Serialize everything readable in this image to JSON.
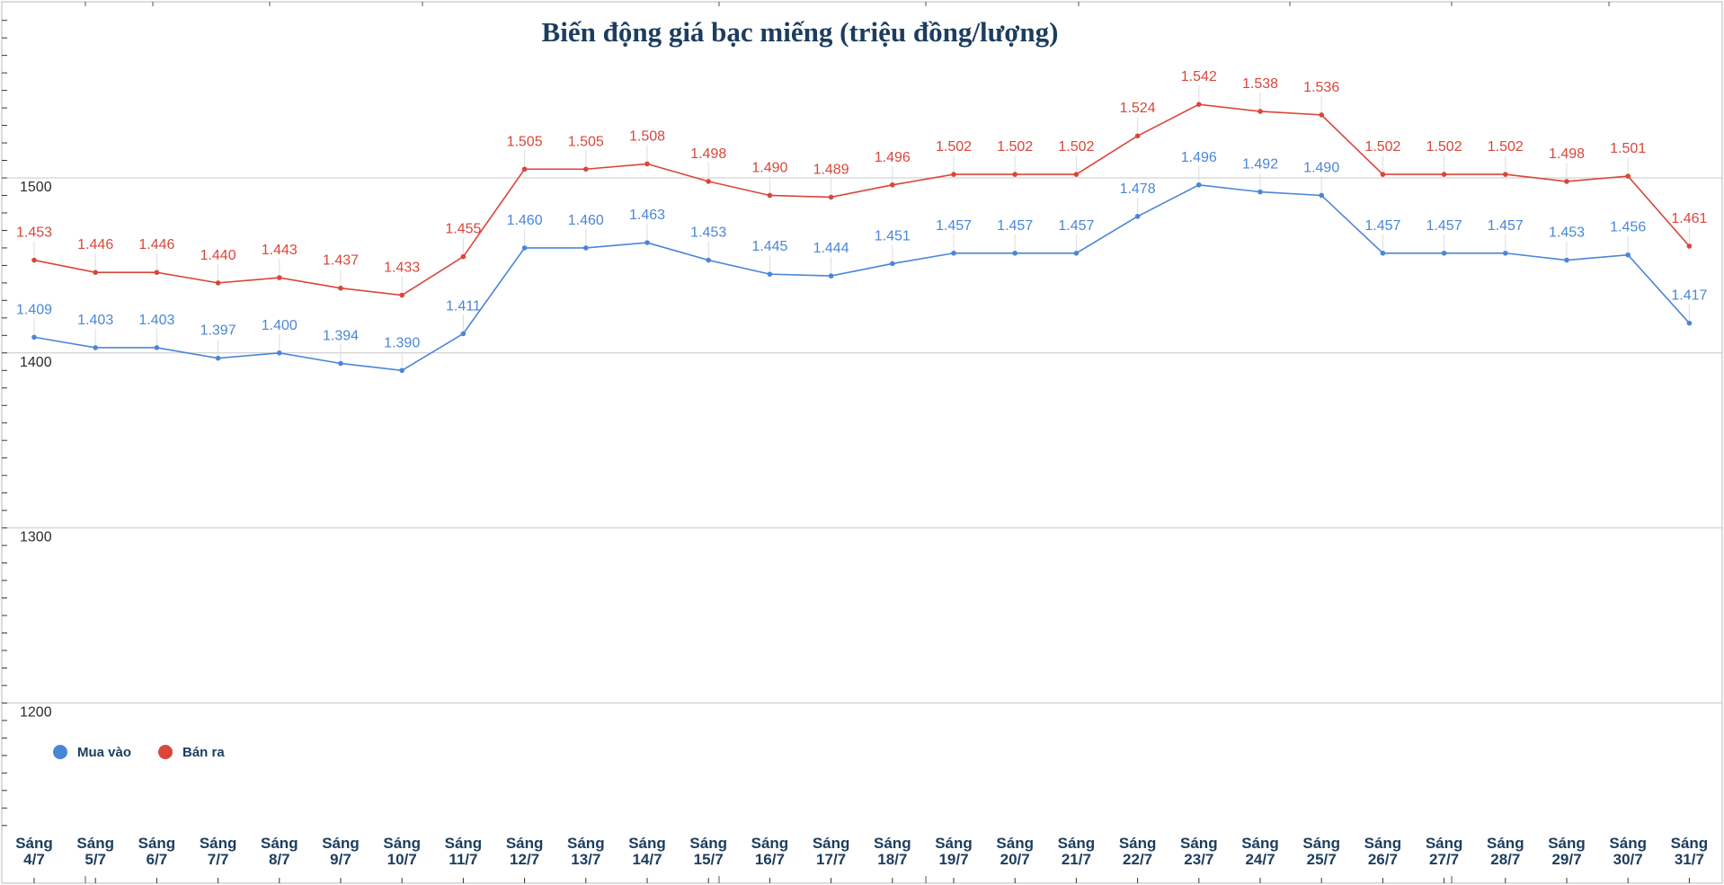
{
  "chart_data": {
    "type": "line",
    "title": "Biến động giá bạc miếng (triệu đồng/lượng)",
    "xlabel": "",
    "ylabel": "",
    "categories": [
      [
        "Sáng",
        "4/7"
      ],
      [
        "Sáng",
        "5/7"
      ],
      [
        "Sáng",
        "6/7"
      ],
      [
        "Sáng",
        "7/7"
      ],
      [
        "Sáng",
        "8/7"
      ],
      [
        "Sáng",
        "9/7"
      ],
      [
        "Sáng",
        "10/7"
      ],
      [
        "Sáng",
        "11/7"
      ],
      [
        "Sáng",
        "12/7"
      ],
      [
        "Sáng",
        "13/7"
      ],
      [
        "Sáng",
        "14/7"
      ],
      [
        "Sáng",
        "15/7"
      ],
      [
        "Sáng",
        "16/7"
      ],
      [
        "Sáng",
        "17/7"
      ],
      [
        "Sáng",
        "18/7"
      ],
      [
        "Sáng",
        "19/7"
      ],
      [
        "Sáng",
        "20/7"
      ],
      [
        "Sáng",
        "21/7"
      ],
      [
        "Sáng",
        "22/7"
      ],
      [
        "Sáng",
        "23/7"
      ],
      [
        "Sáng",
        "24/7"
      ],
      [
        "Sáng",
        "25/7"
      ],
      [
        "Sáng",
        "26/7"
      ],
      [
        "Sáng",
        "27/7"
      ],
      [
        "Sáng",
        "28/7"
      ],
      [
        "Sáng",
        "29/7"
      ],
      [
        "Sáng",
        "30/7"
      ],
      [
        "Sáng",
        "31/7"
      ]
    ],
    "series": [
      {
        "name": "Mua vào",
        "color": "#4a86d8",
        "values": [
          1409,
          1403,
          1403,
          1397,
          1400,
          1394,
          1390,
          1411,
          1460,
          1460,
          1463,
          1453,
          1445,
          1444,
          1451,
          1457,
          1457,
          1457,
          1478,
          1496,
          1492,
          1490,
          1457,
          1457,
          1457,
          1453,
          1456,
          1417
        ],
        "labels": [
          "1.409",
          "1.403",
          "1.403",
          "1.397",
          "1.400",
          "1.394",
          "1.390",
          "1.411",
          "1.460",
          "1.460",
          "1.463",
          "1.453",
          "1.445",
          "1.444",
          "1.451",
          "1.457",
          "1.457",
          "1.457",
          "1.478",
          "1.496",
          "1.492",
          "1.490",
          "1.457",
          "1.457",
          "1.457",
          "1.453",
          "1.456",
          "1.417"
        ]
      },
      {
        "name": "Bán ra",
        "color": "#d9463a",
        "values": [
          1453,
          1446,
          1446,
          1440,
          1443,
          1437,
          1433,
          1455,
          1505,
          1505,
          1508,
          1498,
          1490,
          1489,
          1496,
          1502,
          1502,
          1502,
          1524,
          1542,
          1538,
          1536,
          1502,
          1502,
          1502,
          1498,
          1501,
          1461
        ],
        "labels": [
          "1.453",
          "1.446",
          "1.446",
          "1.440",
          "1.443",
          "1.437",
          "1.433",
          "1.455",
          "1.505",
          "1.505",
          "1.508",
          "1.498",
          "1.490",
          "1.489",
          "1.496",
          "1.502",
          "1.502",
          "1.502",
          "1.524",
          "1.542",
          "1.538",
          "1.536",
          "1.502",
          "1.502",
          "1.502",
          "1.498",
          "1.501",
          "1.461"
        ]
      }
    ],
    "yticks": [
      1500,
      1400,
      1300,
      1200
    ],
    "ylim": [
      1124,
      1600
    ],
    "grid": true,
    "legend_position": "bottom-left"
  }
}
